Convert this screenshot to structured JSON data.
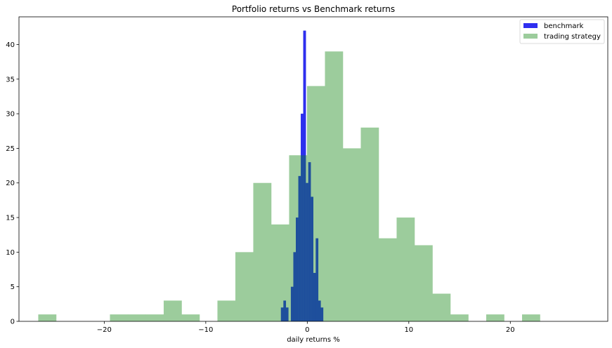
{
  "chart_data": {
    "type": "bar",
    "title": "Portfolio returns vs Benchmark returns",
    "xlabel": "daily returns %",
    "ylabel": "",
    "xlim": [
      -28.4,
      29.6
    ],
    "ylim": [
      0,
      44
    ],
    "xticks": [
      -20,
      -10,
      0,
      10,
      20
    ],
    "xtick_labels": [
      "−20",
      "−10",
      "0",
      "10",
      "20"
    ],
    "yticks": [
      0,
      5,
      10,
      15,
      20,
      25,
      30,
      35,
      40
    ],
    "yticks_labels": [
      "0",
      "5",
      "10",
      "15",
      "20",
      "25",
      "30",
      "35",
      "40"
    ],
    "grid": false,
    "legend_position": "top-right",
    "series": [
      {
        "name": "trading strategy",
        "color": "#9ccc9c",
        "bin_start": -26.5,
        "bin_width": 1.765,
        "counts": [
          1,
          0,
          0,
          0,
          1,
          1,
          1,
          3,
          1,
          0,
          3,
          10,
          20,
          14,
          24,
          34,
          39,
          25,
          28,
          12,
          15,
          11,
          4,
          1,
          0,
          1,
          0,
          1
        ]
      },
      {
        "name": "benchmark",
        "color": "#2e2ef0",
        "bin_start": -2.6,
        "bin_width": 0.245,
        "counts": [
          2,
          3,
          2,
          0,
          5,
          10,
          15,
          21,
          30,
          42,
          20,
          23,
          18,
          7,
          12,
          3,
          2
        ]
      }
    ]
  }
}
